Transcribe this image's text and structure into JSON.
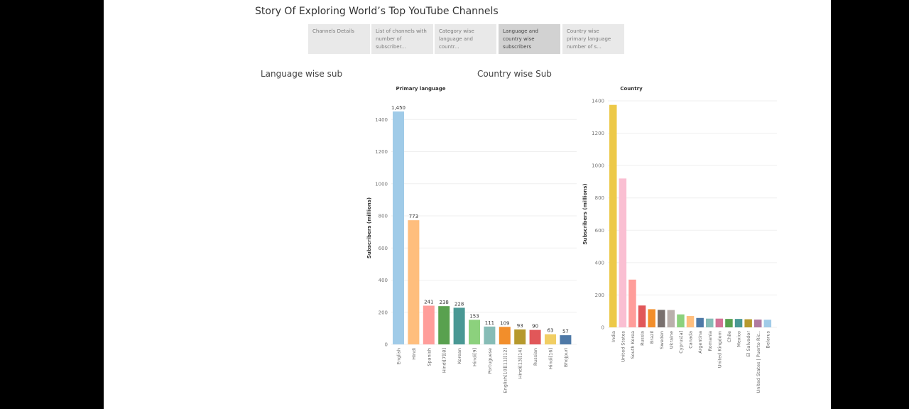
{
  "story": {
    "title": "Story Of Exploring World’s Top YouTube Channels",
    "tabs": [
      {
        "label": "Channels Details",
        "active": false
      },
      {
        "label": "List of channels with number of subscriber...",
        "active": false
      },
      {
        "label": "Category wise language and countr...",
        "active": false
      },
      {
        "label": "Language and country wise subscribers",
        "active": true
      },
      {
        "label": "Country wise primary language number of s...",
        "active": false
      }
    ]
  },
  "chart_data": [
    {
      "type": "bar",
      "title": "Language wise sub",
      "xlabel": "Primary language",
      "ylabel": "Subscribers (millions)",
      "ylim": [
        0,
        1450
      ],
      "yticks": [
        0,
        200,
        400,
        600,
        800,
        1000,
        1200,
        1400
      ],
      "grid": true,
      "show_value_labels": true,
      "categories": [
        "English",
        "Hindi",
        "Spanish",
        "Hindi[7][8]",
        "Korean",
        "Hindi[9]",
        "Portuguese",
        "English[10][11][12]",
        "Hindi[13][14]",
        "Russian",
        "Hindi[16]",
        "Bhojpuri"
      ],
      "values": [
        1450,
        773,
        241,
        238,
        228,
        153,
        111,
        109,
        93,
        90,
        63,
        57
      ],
      "value_labels": [
        "1,450",
        "773",
        "241",
        "238",
        "228",
        "153",
        "111",
        "109",
        "93",
        "90",
        "63",
        "57"
      ],
      "colors": [
        "#a0cbe8",
        "#ffbe7d",
        "#ff9d9a",
        "#59a14f",
        "#499894",
        "#8cd17d",
        "#86bcb6",
        "#f28e2b",
        "#b6992d",
        "#e15759",
        "#f1ce63",
        "#4e79a7"
      ]
    },
    {
      "type": "bar",
      "title": "Country wise Sub",
      "xlabel": "Country",
      "ylabel": "Subscribers (millions)",
      "ylim": [
        0,
        1400
      ],
      "yticks": [
        0,
        200,
        400,
        600,
        800,
        1000,
        1200,
        1400
      ],
      "grid": true,
      "show_value_labels": false,
      "categories": [
        "India",
        "United States",
        "South Korea",
        "Russia",
        "Brazil",
        "Sweden",
        "Ukraine",
        "Cyprus[a]",
        "Canada",
        "Argentina",
        "Romania",
        "United Kingdom",
        "Chile",
        "Mexico",
        "El Salvador",
        "United States | Puerto Ric..",
        "Belarus"
      ],
      "values": [
        1375,
        920,
        295,
        135,
        112,
        108,
        107,
        80,
        70,
        58,
        54,
        54,
        52,
        52,
        50,
        48,
        47
      ],
      "colors": [
        "#edc948",
        "#fabfd2",
        "#ff9d9a",
        "#e15759",
        "#f28e2b",
        "#79706e",
        "#bab0ac",
        "#8cd17d",
        "#ffbe7d",
        "#4e79a7",
        "#86bcb6",
        "#d37295",
        "#59a14f",
        "#499894",
        "#b6992d",
        "#b07aa1",
        "#a0cbe8"
      ]
    }
  ]
}
